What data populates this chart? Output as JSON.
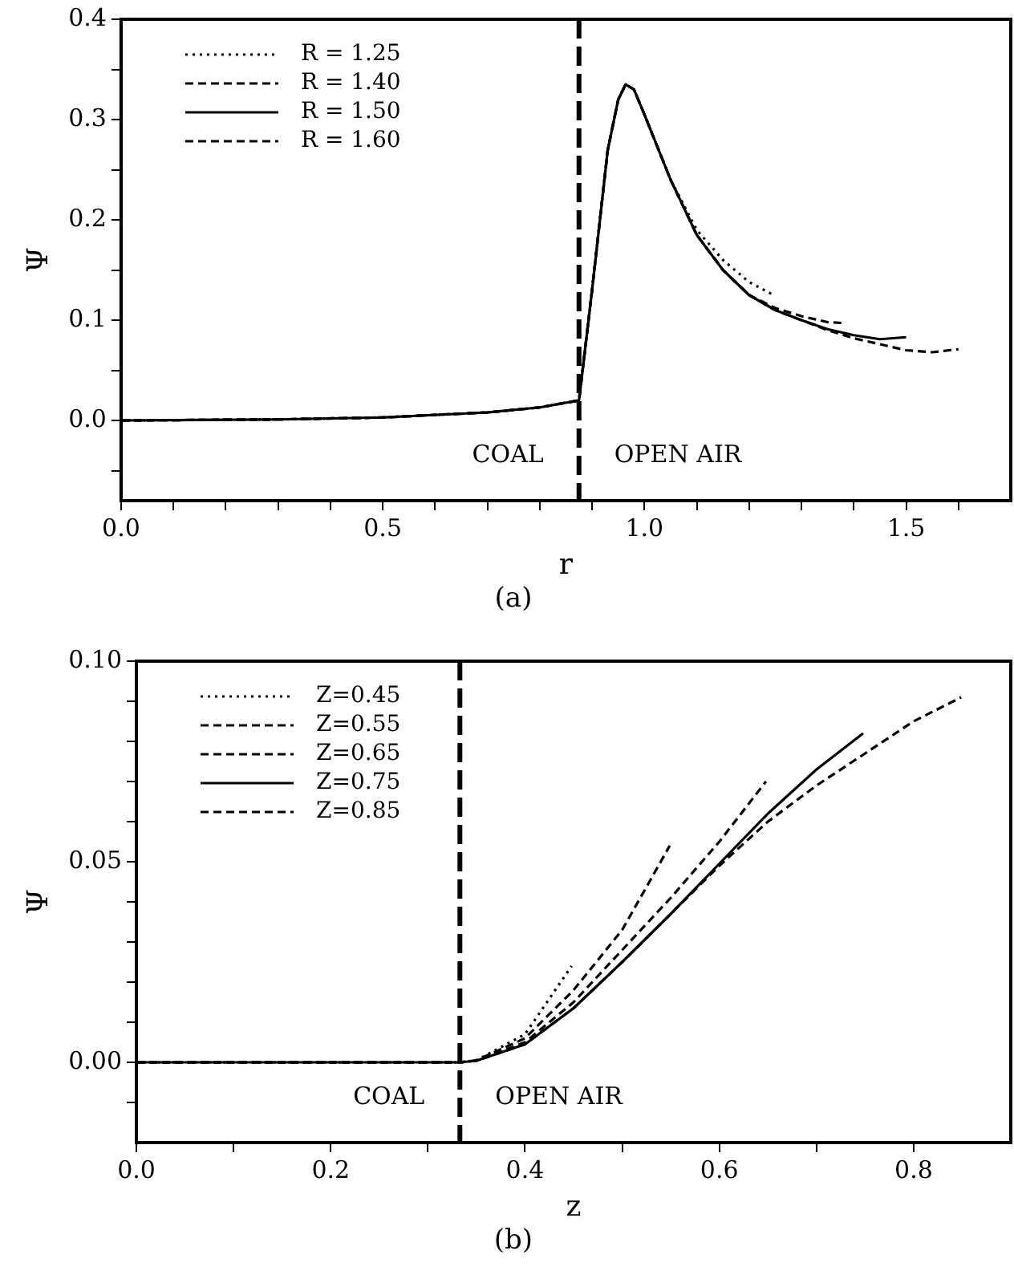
{
  "chart_data": [
    {
      "type": "line",
      "title": "(a)",
      "xlabel": "r",
      "ylabel": "Ψ",
      "legend": "top left",
      "grid": false,
      "xlim": [
        0,
        1.7
      ],
      "xticks": [
        {
          "value": 0,
          "label": "0.0"
        },
        {
          "value": 0.1,
          "label": null
        },
        {
          "value": 0.2,
          "label": null
        },
        {
          "value": 0.3,
          "label": null
        },
        {
          "value": 0.4,
          "label": null
        },
        {
          "value": 0.5,
          "label": "0.5"
        },
        {
          "value": 0.6,
          "label": null
        },
        {
          "value": 0.7,
          "label": null
        },
        {
          "value": 0.8,
          "label": null
        },
        {
          "value": 0.9,
          "label": null
        },
        {
          "value": 1.0,
          "label": "1.0"
        },
        {
          "value": 1.1,
          "label": null
        },
        {
          "value": 1.2,
          "label": null
        },
        {
          "value": 1.3,
          "label": null
        },
        {
          "value": 1.4,
          "label": null
        },
        {
          "value": 1.5,
          "label": "1.5"
        },
        {
          "value": 1.6,
          "label": null
        }
      ],
      "ylim": [
        -0.08,
        0.4
      ],
      "yticks": [
        {
          "value": -0.05,
          "label": null
        },
        {
          "value": 0,
          "label": "0.0"
        },
        {
          "value": 0.05,
          "label": null
        },
        {
          "value": 0.1,
          "label": "0.1"
        },
        {
          "value": 0.15,
          "label": null
        },
        {
          "value": 0.2,
          "label": "0.2"
        },
        {
          "value": 0.25,
          "label": null
        },
        {
          "value": 0.3,
          "label": "0.3"
        },
        {
          "value": 0.35,
          "label": null
        },
        {
          "value": 0.4,
          "label": "0.4"
        }
      ],
      "ref_lines": [
        {
          "axis": "x",
          "value": 0.875,
          "label": null,
          "color": "#000000",
          "line_style": "dashed"
        }
      ],
      "annotations": [
        "COAL",
        "OPEN AIR"
      ],
      "series": [
        {
          "name": "R = 1.25",
          "color": "#000000",
          "line_style": "dotted",
          "x": [
            0,
            0.3,
            0.5,
            0.7,
            0.8,
            0.875,
            0.9,
            0.93,
            0.95,
            0.964,
            0.98,
            1.0,
            1.05,
            1.1,
            1.15,
            1.2,
            1.247
          ],
          "values": [
            0,
            0.001,
            0.003,
            0.008,
            0.013,
            0.02,
            0.13,
            0.27,
            0.32,
            0.335,
            0.33,
            0.305,
            0.24,
            0.19,
            0.16,
            0.138,
            0.125
          ]
        },
        {
          "name": "R = 1.40",
          "color": "#000000",
          "line_style": "dashed",
          "x": [
            0,
            0.3,
            0.5,
            0.7,
            0.8,
            0.875,
            0.9,
            0.93,
            0.95,
            0.964,
            0.98,
            1.0,
            1.05,
            1.1,
            1.15,
            1.2,
            1.25,
            1.3,
            1.35,
            1.383
          ],
          "values": [
            0,
            0.001,
            0.003,
            0.008,
            0.013,
            0.02,
            0.13,
            0.27,
            0.32,
            0.335,
            0.33,
            0.305,
            0.24,
            0.185,
            0.15,
            0.125,
            0.112,
            0.104,
            0.098,
            0.097
          ]
        },
        {
          "name": "R = 1.50",
          "color": "#000000",
          "line_style": "solid",
          "x": [
            0,
            0.3,
            0.5,
            0.7,
            0.8,
            0.875,
            0.9,
            0.93,
            0.95,
            0.964,
            0.98,
            1.0,
            1.05,
            1.1,
            1.15,
            1.2,
            1.25,
            1.3,
            1.35,
            1.4,
            1.45,
            1.5
          ],
          "values": [
            0,
            0.001,
            0.003,
            0.008,
            0.013,
            0.02,
            0.13,
            0.27,
            0.32,
            0.335,
            0.33,
            0.305,
            0.24,
            0.185,
            0.15,
            0.125,
            0.11,
            0.1,
            0.091,
            0.085,
            0.081,
            0.083
          ]
        },
        {
          "name": "R = 1.60",
          "color": "#000000",
          "line_style": "dashed",
          "x": [
            0,
            0.3,
            0.5,
            0.7,
            0.8,
            0.875,
            0.9,
            0.93,
            0.95,
            0.964,
            0.98,
            1.0,
            1.05,
            1.1,
            1.15,
            1.2,
            1.25,
            1.3,
            1.35,
            1.4,
            1.45,
            1.5,
            1.55,
            1.6
          ],
          "values": [
            0,
            0.001,
            0.003,
            0.008,
            0.013,
            0.02,
            0.13,
            0.27,
            0.32,
            0.335,
            0.33,
            0.305,
            0.24,
            0.185,
            0.15,
            0.125,
            0.11,
            0.1,
            0.09,
            0.082,
            0.076,
            0.07,
            0.068,
            0.071
          ]
        }
      ]
    },
    {
      "type": "line",
      "title": "(b)",
      "xlabel": "z",
      "ylabel": "Ψ",
      "legend": "top left",
      "grid": false,
      "xlim": [
        0,
        0.9
      ],
      "xticks": [
        {
          "value": 0,
          "label": "0.0"
        },
        {
          "value": 0.1,
          "label": null
        },
        {
          "value": 0.2,
          "label": "0.2"
        },
        {
          "value": 0.3,
          "label": null
        },
        {
          "value": 0.4,
          "label": "0.4"
        },
        {
          "value": 0.5,
          "label": null
        },
        {
          "value": 0.6,
          "label": "0.6"
        },
        {
          "value": 0.7,
          "label": null
        },
        {
          "value": 0.8,
          "label": "0.8"
        }
      ],
      "ylim": [
        -0.02,
        0.1
      ],
      "yticks": [
        {
          "value": -0.01,
          "label": null
        },
        {
          "value": 0,
          "label": "0.00"
        },
        {
          "value": 0.01,
          "label": null
        },
        {
          "value": 0.02,
          "label": null
        },
        {
          "value": 0.03,
          "label": null
        },
        {
          "value": 0.04,
          "label": null
        },
        {
          "value": 0.05,
          "label": "0.05"
        },
        {
          "value": 0.06,
          "label": null
        },
        {
          "value": 0.07,
          "label": null
        },
        {
          "value": 0.08,
          "label": null
        },
        {
          "value": 0.09,
          "label": null
        },
        {
          "value": 0.1,
          "label": "0.10"
        }
      ],
      "ref_lines": [
        {
          "axis": "x",
          "value": 0.333,
          "label": null,
          "color": "#000000",
          "line_style": "dashed"
        }
      ],
      "annotations": [
        "COAL",
        "OPEN AIR"
      ],
      "series": [
        {
          "name": "Z=0.45",
          "color": "#000000",
          "line_style": "dotted",
          "x": [
            0,
            0.333,
            0.35,
            0.4,
            0.448
          ],
          "values": [
            0,
            0,
            0.0005,
            0.007,
            0.024
          ]
        },
        {
          "name": "Z=0.55",
          "color": "#000000",
          "line_style": "dashed",
          "x": [
            0,
            0.333,
            0.35,
            0.4,
            0.45,
            0.5,
            0.549
          ],
          "values": [
            0,
            0,
            0.0005,
            0.006,
            0.018,
            0.033,
            0.054
          ]
        },
        {
          "name": "Z=0.65",
          "color": "#000000",
          "line_style": "dashed",
          "x": [
            0,
            0.333,
            0.35,
            0.4,
            0.45,
            0.5,
            0.55,
            0.6,
            0.648
          ],
          "values": [
            0,
            0,
            0.0004,
            0.005,
            0.015,
            0.028,
            0.041,
            0.055,
            0.07
          ]
        },
        {
          "name": "Z=0.75",
          "color": "#000000",
          "line_style": "solid",
          "x": [
            0,
            0.333,
            0.35,
            0.4,
            0.45,
            0.5,
            0.55,
            0.6,
            0.65,
            0.7,
            0.748
          ],
          "values": [
            0,
            0,
            0.0004,
            0.0045,
            0.0135,
            0.025,
            0.037,
            0.0495,
            0.062,
            0.073,
            0.082
          ]
        },
        {
          "name": "Z=0.85",
          "color": "#000000",
          "line_style": "dashed",
          "x": [
            0,
            0.333,
            0.35,
            0.4,
            0.45,
            0.5,
            0.55,
            0.6,
            0.65,
            0.7,
            0.75,
            0.8,
            0.849
          ],
          "values": [
            0,
            0,
            0.0004,
            0.0045,
            0.0135,
            0.025,
            0.037,
            0.049,
            0.06,
            0.069,
            0.077,
            0.085,
            0.091
          ]
        }
      ]
    }
  ]
}
